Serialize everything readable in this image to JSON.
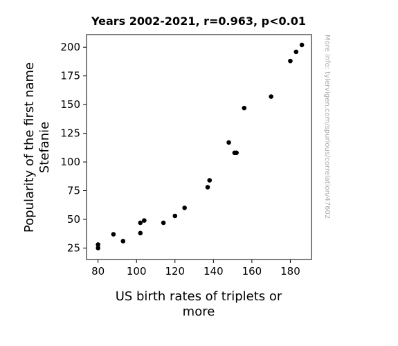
{
  "chart_data": {
    "type": "scatter",
    "title": "Years 2002-2021, r=0.963, p<0.01",
    "xlabel_lines": [
      "US birth rates of triplets or",
      "more"
    ],
    "ylabel_lines": [
      "Popularity of the first name",
      "Stefanie"
    ],
    "watermark": "More info: tylervigen.com/spurious/correlation/47602",
    "xlim": [
      74,
      191
    ],
    "ylim": [
      15,
      211
    ],
    "xticks": [
      80,
      100,
      120,
      140,
      160,
      180
    ],
    "yticks": [
      25,
      50,
      75,
      100,
      125,
      150,
      175,
      200
    ],
    "grid": false,
    "marker_color": "#000000",
    "points": [
      {
        "x": 80,
        "y": 28
      },
      {
        "x": 80,
        "y": 25
      },
      {
        "x": 88,
        "y": 37
      },
      {
        "x": 93,
        "y": 31
      },
      {
        "x": 102,
        "y": 47
      },
      {
        "x": 102,
        "y": 38
      },
      {
        "x": 104,
        "y": 49
      },
      {
        "x": 114,
        "y": 47
      },
      {
        "x": 120,
        "y": 53
      },
      {
        "x": 125,
        "y": 60
      },
      {
        "x": 137,
        "y": 78
      },
      {
        "x": 138,
        "y": 84
      },
      {
        "x": 148,
        "y": 117
      },
      {
        "x": 151,
        "y": 108
      },
      {
        "x": 152,
        "y": 108
      },
      {
        "x": 156,
        "y": 147
      },
      {
        "x": 170,
        "y": 157
      },
      {
        "x": 180,
        "y": 188
      },
      {
        "x": 183,
        "y": 196
      },
      {
        "x": 186,
        "y": 202
      }
    ]
  }
}
